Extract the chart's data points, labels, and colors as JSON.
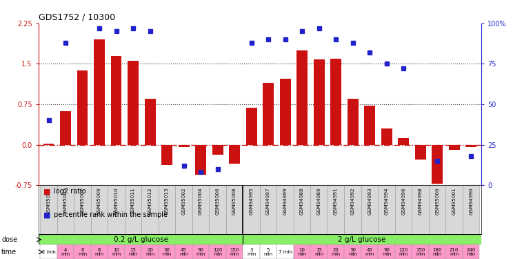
{
  "title": "GDS1752 / 10300",
  "samples": [
    "GSM95003",
    "GSM95005",
    "GSM95007",
    "GSM95009",
    "GSM95010",
    "GSM95011",
    "GSM95012",
    "GSM95013",
    "GSM95002",
    "GSM95004",
    "GSM95006",
    "GSM95008",
    "GSM94995",
    "GSM94997",
    "GSM94999",
    "GSM94988",
    "GSM94989",
    "GSM94991",
    "GSM94992",
    "GSM94993",
    "GSM94994",
    "GSM94996",
    "GSM94998",
    "GSM95000",
    "GSM95001",
    "GSM94990"
  ],
  "log2_ratio": [
    0.02,
    0.62,
    1.38,
    1.95,
    1.65,
    1.55,
    0.85,
    -0.38,
    -0.05,
    -0.55,
    -0.18,
    -0.35,
    0.68,
    1.15,
    1.22,
    1.75,
    1.58,
    1.6,
    0.85,
    0.72,
    0.3,
    0.12,
    -0.28,
    -0.72,
    -0.1,
    -0.05
  ],
  "percentile_rank": [
    40,
    88,
    null,
    97,
    95,
    97,
    95,
    null,
    12,
    8,
    10,
    null,
    88,
    90,
    90,
    95,
    97,
    90,
    88,
    82,
    75,
    72,
    null,
    15,
    null,
    18
  ],
  "bar_color": "#cc1111",
  "dot_color": "#2222cc",
  "hline_color": "#cc2222",
  "dotted_line_color": "#333333",
  "ylim": [
    -0.75,
    2.25
  ],
  "yticks_left": [
    -0.75,
    0.0,
    0.75,
    1.5,
    2.25
  ],
  "yticks_right": [
    0,
    25,
    50,
    75,
    100
  ],
  "right_axis_color": "#2222cc",
  "left_axis_color": "#cc1111",
  "dose_label1": "0.2 g/L glucose",
  "dose_label2": "2 g/L glucose",
  "dose_color": "#88ee66",
  "dose_split": 11,
  "time_labels_1": [
    "2 min",
    "4\nmin",
    "6\nmin",
    "8\nmin",
    "10\nmin",
    "15\nmin",
    "20\nmin",
    "30\nmin",
    "45\nmin",
    "90\nmin",
    "120\nmin",
    "150\nmin"
  ],
  "time_labels_2": [
    "3\nmin",
    "5\nmin",
    "7 min",
    "10\nmin",
    "15\nmin",
    "20\nmin",
    "30\nmin",
    "45\nmin",
    "90\nmin",
    "120\nmin",
    "150\nmin",
    "180\nmin",
    "210\nmin",
    "240\nmin"
  ],
  "time_white_1": [
    0
  ],
  "time_white_2": [
    0,
    1,
    2
  ],
  "time_pink": "#ff99cc",
  "sample_box_color": "#cccccc",
  "sample_bg": "#e8e8e8"
}
